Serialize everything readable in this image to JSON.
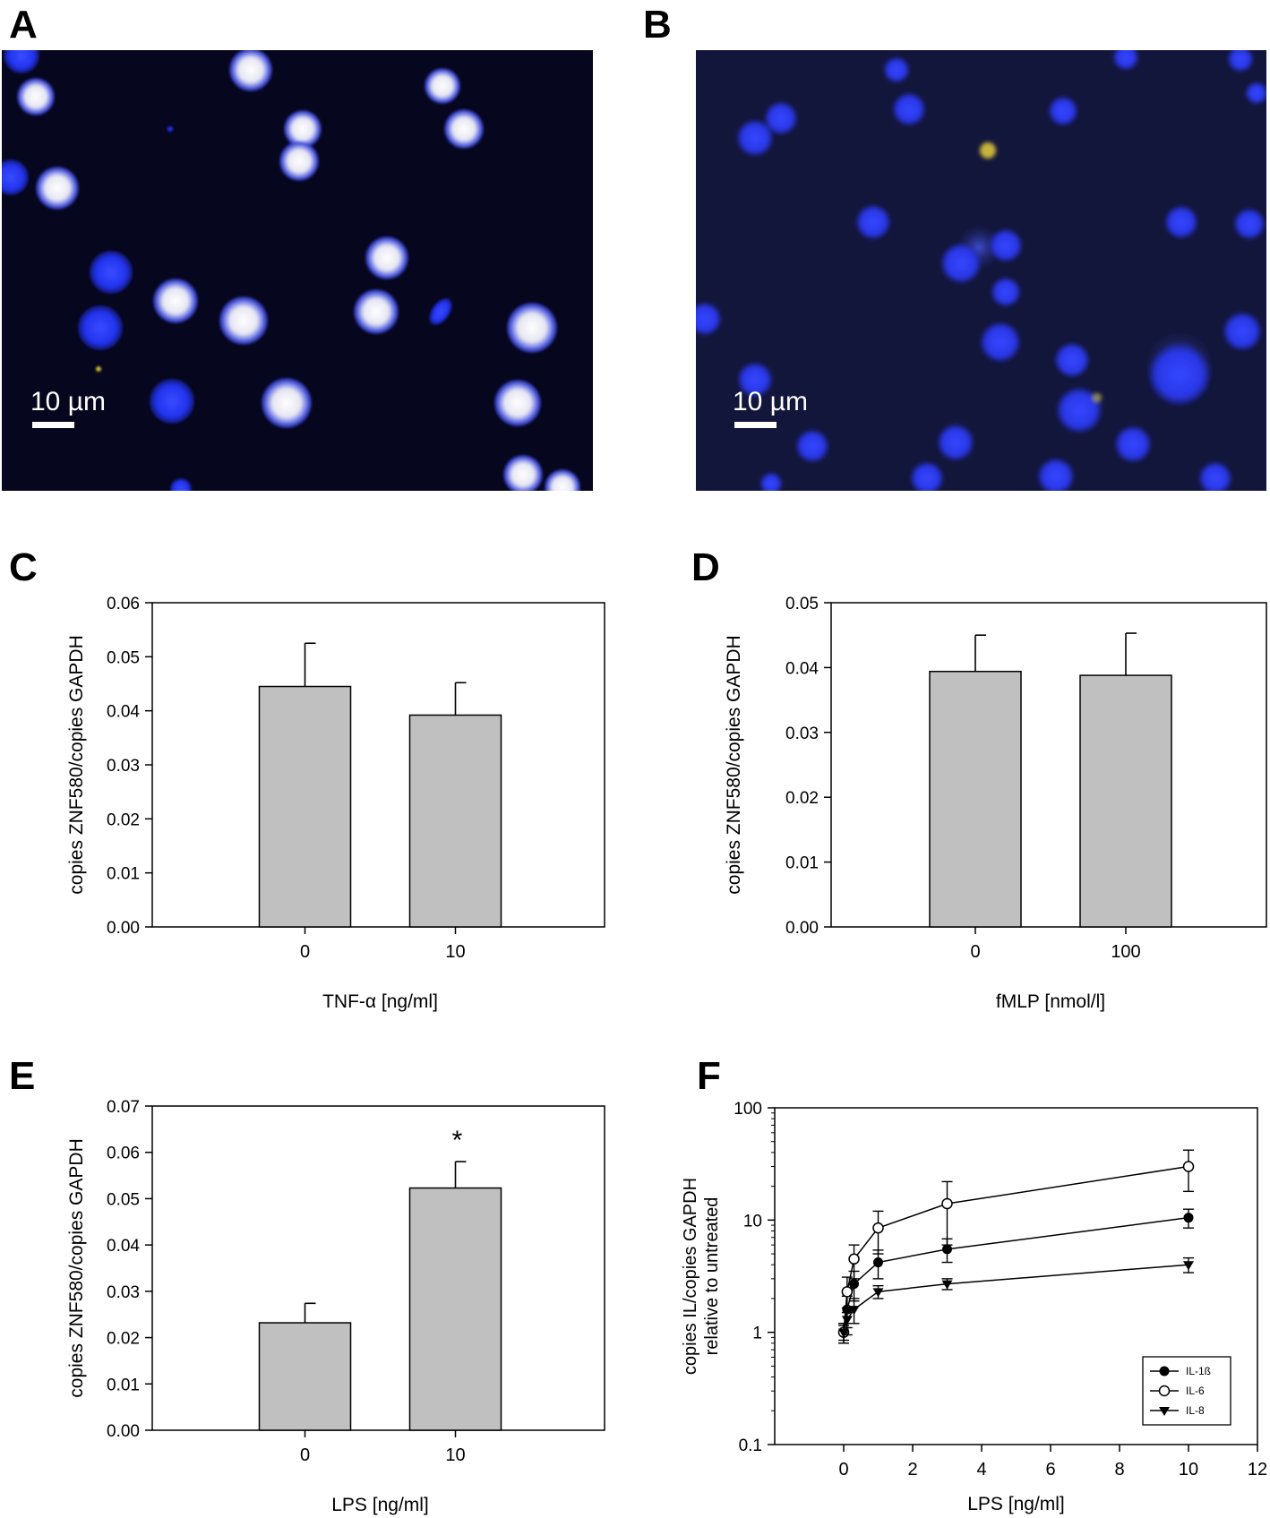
{
  "panels": {
    "A": {
      "letter": "A",
      "scale_label": "10 µm"
    },
    "B": {
      "letter": "B",
      "scale_label": "10 µm"
    },
    "C": {
      "letter": "C"
    },
    "D": {
      "letter": "D"
    },
    "E": {
      "letter": "E"
    },
    "F": {
      "letter": "F"
    }
  },
  "colors": {
    "bar_fill": "#c0c0c0",
    "micrograph_bg_a": "#06061e",
    "micrograph_bg_b": "#13163b",
    "nucleus_blue": "#2233ee",
    "nucleus_white": "#f1f1f4",
    "yellow_signal": "#c9b43a"
  },
  "chart_data": [
    {
      "id": "C",
      "type": "bar",
      "categories": [
        "0",
        "10"
      ],
      "values": [
        0.0445,
        0.0392
      ],
      "errors": [
        0.008,
        0.006
      ],
      "xlabel": "TNF-α [ng/ml]",
      "ylabel": "copies ZNF580/copies GAPDH",
      "ylim": [
        0,
        0.06
      ],
      "yticks": [
        "0.00",
        "0.01",
        "0.02",
        "0.03",
        "0.04",
        "0.05",
        "0.06"
      ],
      "grid": false,
      "legend": "none"
    },
    {
      "id": "D",
      "type": "bar",
      "categories": [
        "0",
        "100"
      ],
      "values": [
        0.0394,
        0.0388
      ],
      "errors": [
        0.0056,
        0.0065
      ],
      "xlabel": "fMLP [nmol/l]",
      "ylabel": "copies ZNF580/copies GAPDH",
      "ylim": [
        0,
        0.05
      ],
      "yticks": [
        "0.00",
        "0.01",
        "0.02",
        "0.03",
        "0.04",
        "0.05"
      ],
      "grid": false,
      "legend": "none"
    },
    {
      "id": "E",
      "type": "bar",
      "categories": [
        "0",
        "10"
      ],
      "values": [
        0.0232,
        0.0523
      ],
      "errors": [
        0.0042,
        0.0057
      ],
      "annotations": [
        "",
        "*"
      ],
      "xlabel": "LPS [ng/ml]",
      "ylabel": "copies ZNF580/copies GAPDH",
      "ylim": [
        0,
        0.07
      ],
      "yticks": [
        "0.00",
        "0.01",
        "0.02",
        "0.03",
        "0.04",
        "0.05",
        "0.06",
        "0.07"
      ],
      "grid": false,
      "legend": "none"
    },
    {
      "id": "F",
      "type": "line",
      "yscale": "log",
      "xlabel": "LPS [ng/ml]",
      "ylabel_lines": [
        "copies IL/copies GAPDH",
        "relative to untreated"
      ],
      "xlim": [
        -2,
        12
      ],
      "ylim": [
        0.1,
        100
      ],
      "xticks": [
        "0",
        "2",
        "4",
        "6",
        "8",
        "10",
        "12"
      ],
      "yticks": [
        "0.1",
        "1",
        "10",
        "100"
      ],
      "grid": false,
      "legend": "bottom-right",
      "series": [
        {
          "name": "IL-1ß",
          "marker": "filled-circle",
          "x": [
            0,
            0.1,
            0.3,
            1,
            3,
            10
          ],
          "y": [
            1,
            1.6,
            2.7,
            4.2,
            5.5,
            10.5
          ],
          "err": [
            0.15,
            0.5,
            0.8,
            1.2,
            1.3,
            2.0
          ]
        },
        {
          "name": "IL-6",
          "marker": "open-circle",
          "x": [
            0,
            0.1,
            0.3,
            1,
            3,
            10
          ],
          "y": [
            1,
            2.3,
            4.5,
            8.5,
            14,
            30
          ],
          "err": [
            0.2,
            0.8,
            1.5,
            3.5,
            8,
            12
          ]
        },
        {
          "name": "IL-8",
          "marker": "filled-triangle-down",
          "x": [
            0,
            0.1,
            0.3,
            1,
            3,
            10
          ],
          "y": [
            1,
            1.3,
            1.6,
            2.3,
            2.7,
            4.0
          ],
          "err": [
            0.2,
            0.35,
            0.4,
            0.3,
            0.3,
            0.6
          ]
        }
      ]
    }
  ]
}
